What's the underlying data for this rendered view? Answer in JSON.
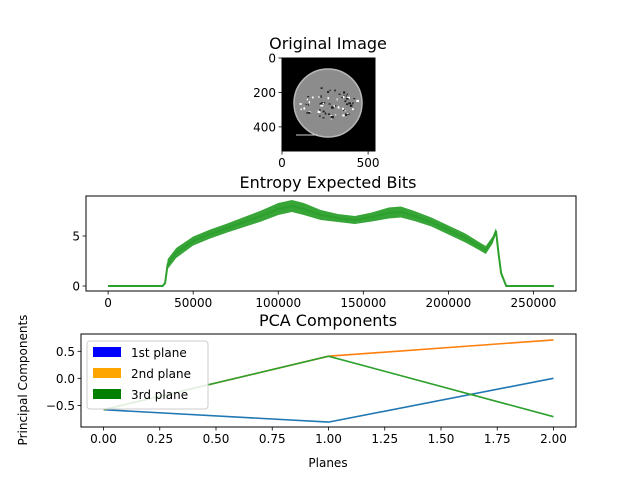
{
  "chart_data": [
    {
      "type": "image",
      "title": "Original Image",
      "xlim": [
        0,
        540
      ],
      "ylim": [
        540,
        0
      ],
      "xticks": [
        0,
        500
      ],
      "yticks": [
        0,
        200,
        400
      ],
      "xtick_labels": [
        "0",
        "500"
      ],
      "ytick_labels": [
        "0",
        "200",
        "400"
      ]
    },
    {
      "type": "line",
      "title": "Entropy Expected Bits",
      "xlim": [
        -13000,
        275000
      ],
      "ylim": [
        -0.5,
        9
      ],
      "xticks": [
        0,
        50000,
        100000,
        150000,
        200000,
        250000
      ],
      "yticks": [
        0,
        5
      ],
      "xtick_labels": [
        "0",
        "50000",
        "100000",
        "150000",
        "200000",
        "250000"
      ],
      "ytick_labels": [
        "0",
        "5"
      ],
      "line_color": "#2ca02c",
      "band_color": "#2ca02c",
      "series": [
        {
          "x": [
            0,
            32000,
            33500,
            35000,
            40000,
            50000,
            60000,
            70000,
            80000,
            90000,
            100000,
            108000,
            115000,
            125000,
            135000,
            145000,
            155000,
            165000,
            172000,
            180000,
            190000,
            200000,
            210000,
            218000,
            222000,
            226000,
            228000,
            229500,
            231000,
            234000,
            262000
          ],
          "y": [
            0,
            0,
            0.3,
            2.2,
            3.3,
            4.5,
            5.2,
            5.8,
            6.4,
            7.0,
            7.7,
            8.0,
            7.7,
            7.1,
            6.8,
            6.6,
            6.9,
            7.3,
            7.4,
            7.0,
            6.4,
            5.6,
            4.8,
            4.0,
            3.6,
            4.6,
            5.5,
            3.2,
            1.3,
            0,
            0
          ],
          "spread": [
            0,
            0,
            0.2,
            0.5,
            0.5,
            0.45,
            0.45,
            0.45,
            0.5,
            0.55,
            0.6,
            0.6,
            0.6,
            0.5,
            0.4,
            0.4,
            0.45,
            0.55,
            0.55,
            0.5,
            0.45,
            0.45,
            0.45,
            0.4,
            0.4,
            0.35,
            0.3,
            0.3,
            0.3,
            0,
            0
          ]
        }
      ]
    },
    {
      "type": "line",
      "title": "PCA Components",
      "xlabel": "Planes",
      "ylabel": "Principal Components",
      "xlim": [
        -0.1,
        2.1
      ],
      "ylim": [
        -0.9,
        0.82
      ],
      "xticks": [
        0,
        0.25,
        0.5,
        0.75,
        1,
        1.25,
        1.5,
        1.75,
        2
      ],
      "yticks": [
        -0.5,
        0,
        0.5
      ],
      "xtick_labels": [
        "0.00",
        "0.25",
        "0.50",
        "0.75",
        "1.00",
        "1.25",
        "1.50",
        "1.75",
        "2.00"
      ],
      "ytick_labels": [
        "−0.5",
        "0.0",
        "0.5"
      ],
      "x": [
        0,
        1,
        2
      ],
      "series": [
        {
          "values": [
            -0.58,
            -0.81,
            0.0
          ],
          "color": "#1f77b4"
        },
        {
          "values": [
            -0.58,
            0.41,
            0.71
          ],
          "color": "#ff7f0e"
        },
        {
          "values": [
            -0.58,
            0.41,
            -0.71
          ],
          "color": "#2ca02c"
        }
      ],
      "legend": {
        "placement": "upper-left",
        "entries": [
          {
            "label": "1st plane",
            "color": "#0000ff"
          },
          {
            "label": "2nd plane",
            "color": "#ffa500"
          },
          {
            "label": "3rd plane",
            "color": "#008000"
          }
        ]
      }
    }
  ]
}
